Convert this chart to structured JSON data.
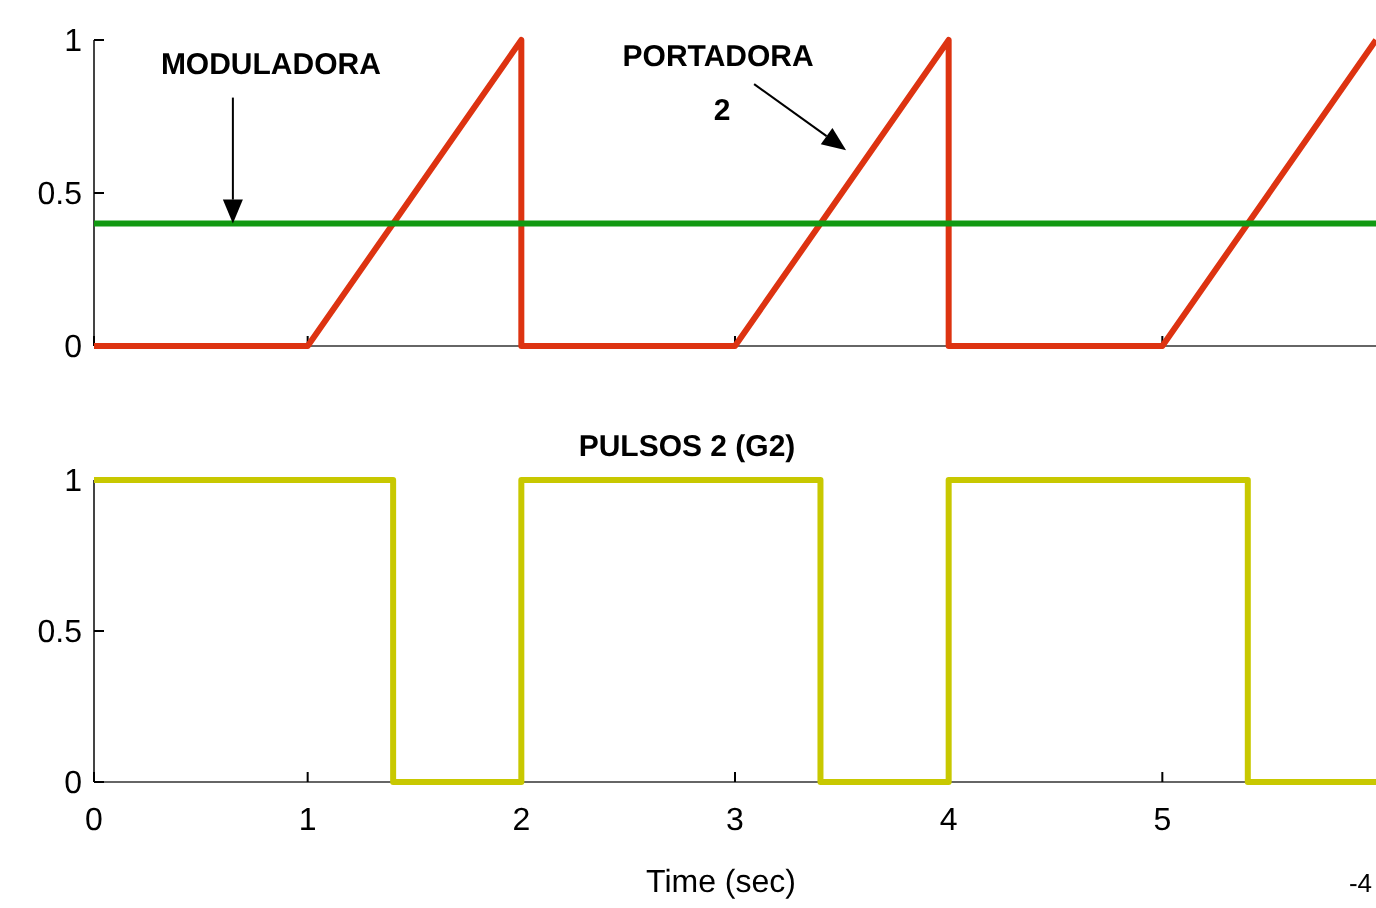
{
  "chart_data": [
    {
      "type": "line",
      "xlim": [
        0,
        6
      ],
      "ylim": [
        0,
        1
      ],
      "xticks": [
        0,
        1,
        2,
        3,
        4,
        5
      ],
      "yticks": [
        0,
        0.5,
        1
      ],
      "tick_labels": "y",
      "series": [
        {
          "color": "#dd3311",
          "x": [
            0,
            1,
            2,
            2,
            3,
            4,
            4,
            5,
            6
          ],
          "values": [
            0,
            0,
            1,
            0,
            0,
            1,
            0,
            0,
            1
          ]
        },
        {
          "color": "#119911",
          "x": [
            0,
            6
          ],
          "values": [
            0.4,
            0.4
          ]
        }
      ],
      "annotations": [
        "MODULADORA",
        "PORTADORA 2"
      ]
    },
    {
      "type": "step",
      "title": "PULSOS 2 (G2)",
      "xlabel": "Time (sec)",
      "xlim": [
        0,
        6
      ],
      "ylim": [
        0,
        1
      ],
      "xticks": [
        0,
        1,
        2,
        3,
        4,
        5
      ],
      "yticks": [
        0,
        0.5,
        1
      ],
      "series": [
        {
          "color": "#c8c800",
          "x": [
            0,
            1.4,
            2,
            3.4,
            4,
            5.4,
            6
          ],
          "values": [
            1,
            0,
            1,
            0,
            1,
            0,
            0
          ]
        }
      ],
      "annotations": [
        "-4"
      ]
    }
  ]
}
